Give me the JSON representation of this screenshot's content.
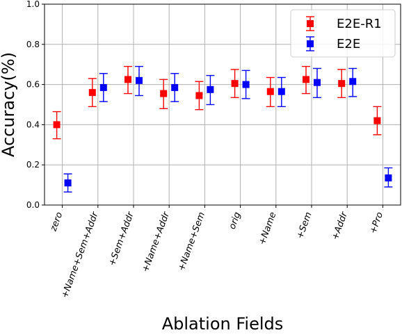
{
  "chart_data": {
    "type": "scatter",
    "title": "",
    "xlabel": "Ablation Fields",
    "ylabel": "Accuracy(%)",
    "ylim": [
      0.0,
      1.0
    ],
    "yticks": [
      "0.0",
      "0.2",
      "0.4",
      "0.6",
      "0.8",
      "1.0"
    ],
    "grid": true,
    "legend_position": "top-right",
    "categories": [
      "zero",
      "+Name+Sem+Addr",
      "+Sem+Addr",
      "+Name+Addr",
      "+Name+Sem",
      "orig",
      "+Name",
      "+Sem",
      "+Addr",
      "+Pro"
    ],
    "series": [
      {
        "name": "E2E-R1",
        "color": "#ff0000",
        "values": [
          0.4,
          0.56,
          0.625,
          0.555,
          0.545,
          0.605,
          0.565,
          0.625,
          0.605,
          0.42
        ],
        "lower": [
          0.33,
          0.49,
          0.555,
          0.48,
          0.475,
          0.535,
          0.49,
          0.555,
          0.535,
          0.35
        ],
        "upper": [
          0.465,
          0.63,
          0.69,
          0.625,
          0.615,
          0.675,
          0.635,
          0.69,
          0.675,
          0.49
        ]
      },
      {
        "name": "E2E",
        "color": "#0000ff",
        "values": [
          0.11,
          0.585,
          0.62,
          0.585,
          0.575,
          0.6,
          0.565,
          0.61,
          0.615,
          0.135
        ],
        "lower": [
          0.065,
          0.515,
          0.545,
          0.515,
          0.5,
          0.53,
          0.49,
          0.535,
          0.54,
          0.09
        ],
        "upper": [
          0.155,
          0.655,
          0.69,
          0.655,
          0.645,
          0.67,
          0.635,
          0.68,
          0.68,
          0.185
        ]
      }
    ]
  }
}
